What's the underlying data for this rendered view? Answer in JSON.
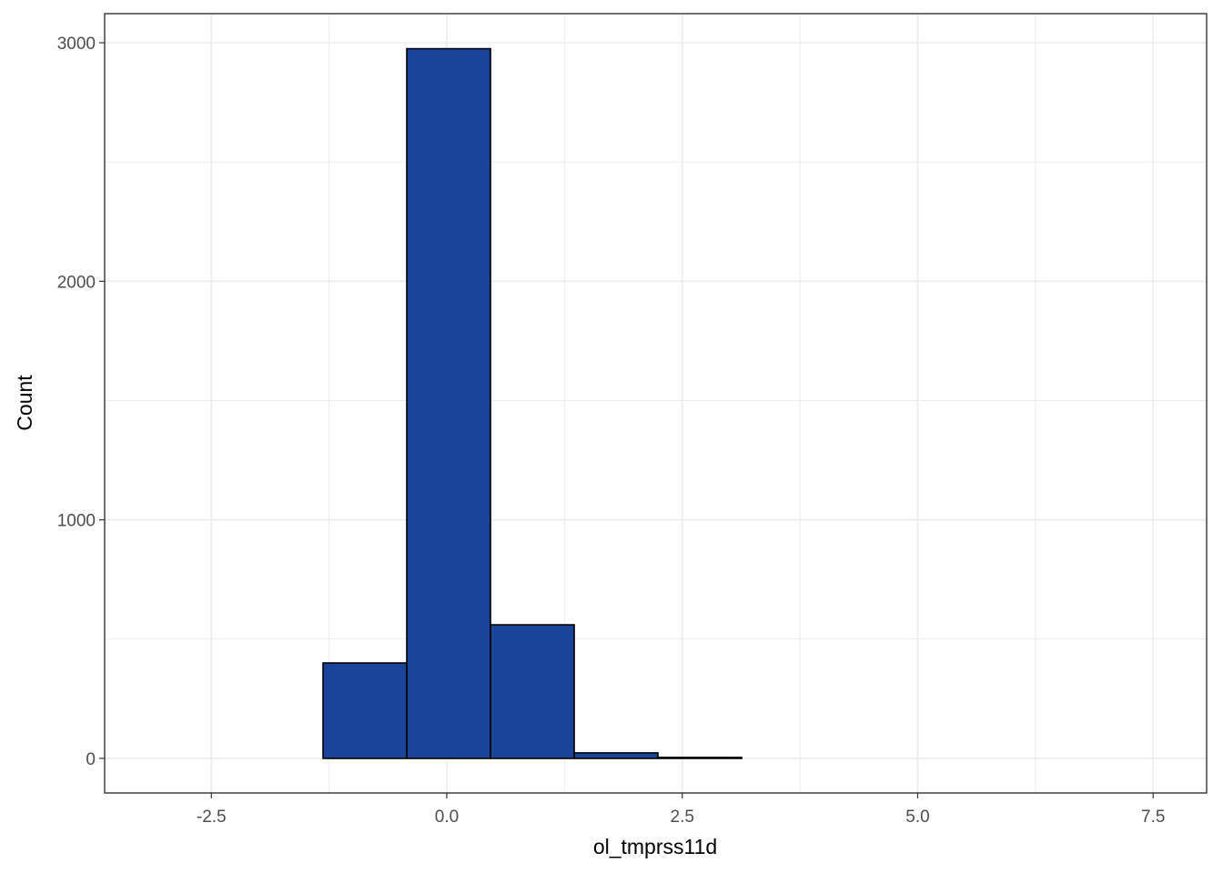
{
  "chart_data": {
    "type": "histogram",
    "x_label": "ol_tmprss11d",
    "y_label": "Count",
    "bins": [
      -3.092,
      -2.203,
      -1.314,
      -0.425,
      0.464,
      1.353,
      2.242,
      3.131,
      4.02,
      4.909,
      5.798,
      6.687,
      7.576
    ],
    "values": [
      0,
      0,
      400,
      2975,
      560,
      23,
      4,
      0,
      0,
      0,
      0,
      0
    ],
    "color": "#1a4499",
    "edgecolor": "#000000",
    "xlim": [
      -3.633,
      8.068
    ],
    "ylim": [
      -145,
      3122
    ],
    "xticks": [
      -2.5,
      {
        "value": 0,
        "label": "0.0"
      },
      2.5,
      {
        "value": 5,
        "label": "5.0"
      },
      7.5
    ],
    "yticks": [
      0,
      1000,
      2000,
      3000
    ],
    "minor_xticks": [
      -1.25,
      1.25,
      3.75,
      6.25
    ],
    "minor_yticks": [
      500,
      1500,
      2500
    ],
    "grid": true
  }
}
